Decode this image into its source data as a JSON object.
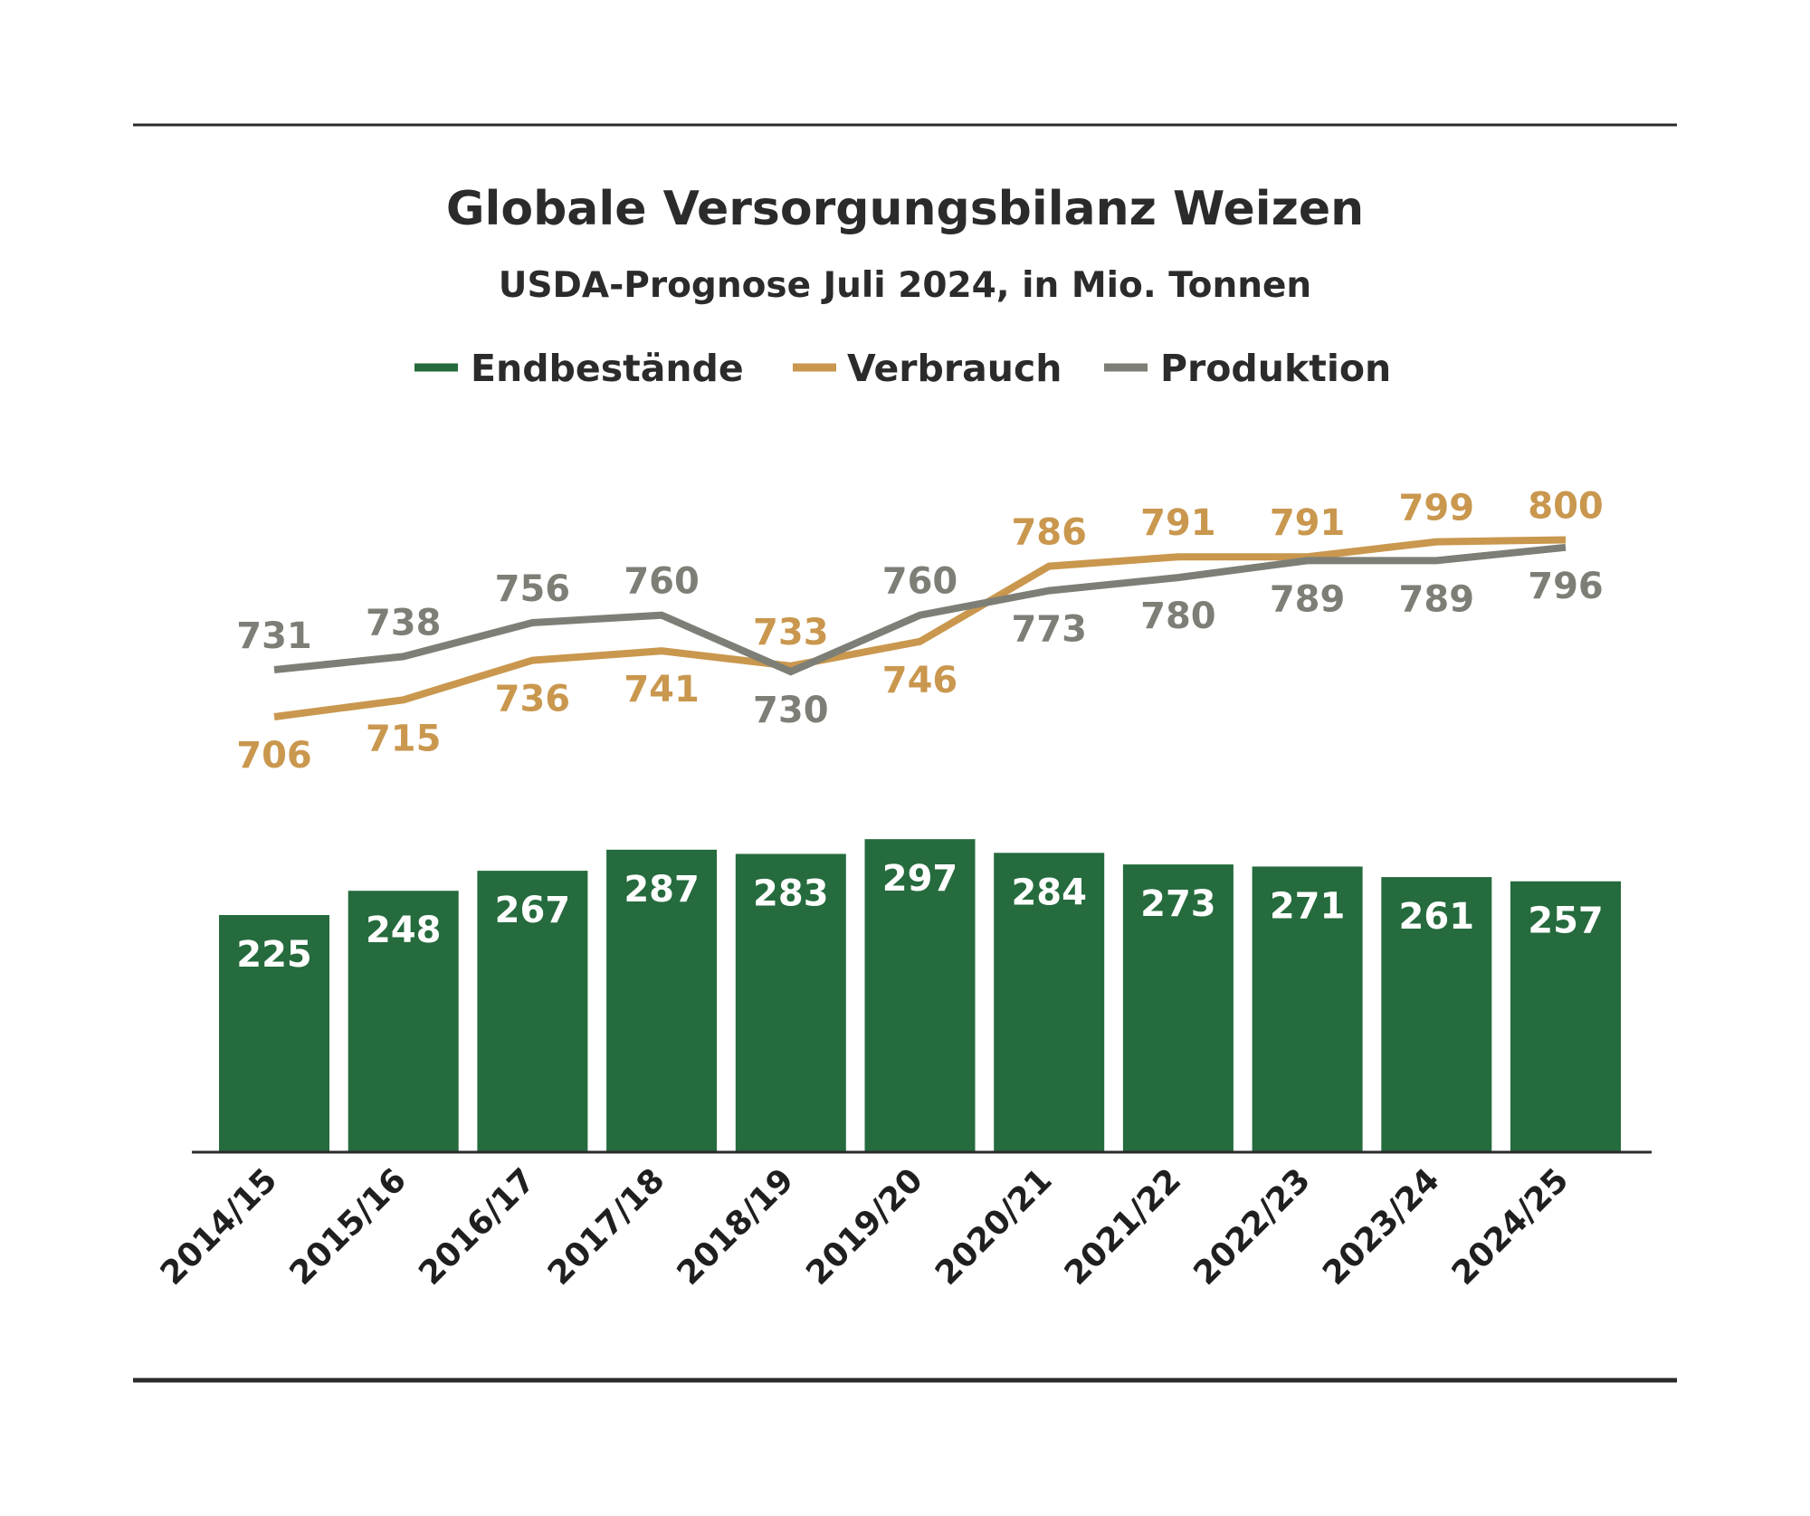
{
  "colors": {
    "endbestaende": "#256b3d",
    "verbrauch": "#c9974e",
    "produktion": "#7d7f77",
    "text": "#2b2b2b",
    "rule": "#2b2b2b"
  },
  "chart_data": {
    "type": "bar+line",
    "title": "Globale Versorgungsbilanz Weizen",
    "subtitle": "USDA-Prognose Juli 2024, in Mio. Tonnen",
    "legend_position": "top-center",
    "grid": false,
    "categories": [
      "2014/15",
      "2015/16",
      "2016/17",
      "2017/18",
      "2018/19",
      "2019/20",
      "2020/21",
      "2021/22",
      "2022/23",
      "2023/24",
      "2024/25"
    ],
    "series": [
      {
        "name": "Endbestände",
        "type": "bar",
        "values": [
          225,
          248,
          267,
          287,
          283,
          297,
          284,
          273,
          271,
          261,
          257
        ]
      },
      {
        "name": "Verbrauch",
        "type": "line",
        "values": [
          706,
          715,
          736,
          741,
          733,
          746,
          786,
          791,
          791,
          799,
          800
        ]
      },
      {
        "name": "Produktion",
        "type": "line",
        "values": [
          731,
          738,
          756,
          760,
          730,
          760,
          773,
          780,
          789,
          789,
          796
        ]
      }
    ]
  }
}
